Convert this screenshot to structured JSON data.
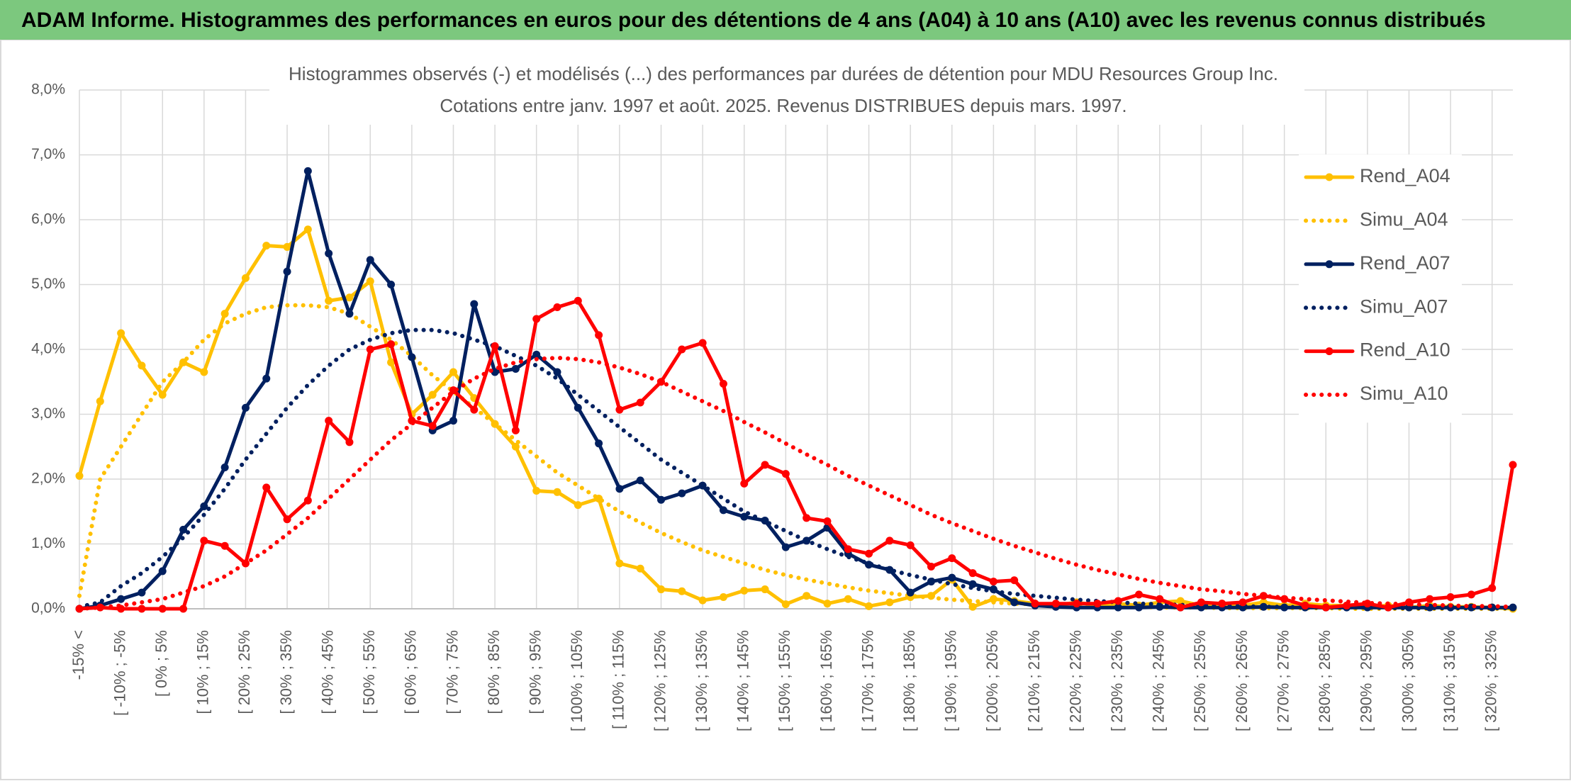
{
  "header": {
    "title": "ADAM Informe. Histogrammes des performances en euros pour des détentions de 4 ans (A04) à 10 ans (A10) avec les revenus connus distribués"
  },
  "chart_data": {
    "type": "line",
    "title": "Histogrammes observés (-) et modélisés (...) des performances par durées de détention pour MDU Resources Group Inc.",
    "subtitle": "Cotations entre janv. 1997 et août. 2025. Revenus DISTRIBUES depuis mars. 1997.",
    "categories": [
      "-15% <",
      null,
      "[ -10% ; -5%",
      null,
      "[ 0% ; 5%",
      null,
      "[ 10% ; 15%",
      null,
      "[ 20% ; 25%",
      null,
      "[ 30% ; 35%",
      null,
      "[ 40% ; 45%",
      null,
      "[ 50% ; 55%",
      null,
      "[ 60% ; 65%",
      null,
      "[ 70% ; 75%",
      null,
      "[ 80% ; 85%",
      null,
      "[ 90% ; 95%",
      null,
      "[ 100% ; 105%",
      null,
      "[ 110% ; 115%",
      null,
      "[ 120% ; 125%",
      null,
      "[ 130% ; 135%",
      null,
      "[ 140% ; 145%",
      null,
      "[ 150% ; 155%",
      null,
      "[ 160% ; 165%",
      null,
      "[ 170% ; 175%",
      null,
      "[ 180% ; 185%",
      null,
      "[ 190% ; 195%",
      null,
      "[ 200% ; 205%",
      null,
      "[ 210% ; 215%",
      null,
      "[ 220% ; 225%",
      null,
      "[ 230% ; 235%",
      null,
      "[ 240% ; 245%",
      null,
      "[ 250% ; 255%",
      null,
      "[ 260% ; 265%",
      null,
      "[ 270% ; 275%",
      null,
      "[ 280% ; 285%",
      null,
      "[ 290% ; 295%",
      null,
      "[ 300% ; 305%",
      null,
      "[ 310% ; 315%",
      null,
      "[ 320% ; 325%",
      null
    ],
    "series": [
      {
        "name": "Rend_A04",
        "color": "#ffc000",
        "line_style": "solid",
        "markers": true,
        "values": [
          2.05,
          3.2,
          4.25,
          3.75,
          3.3,
          3.8,
          3.65,
          4.55,
          5.1,
          5.6,
          5.58,
          5.85,
          4.75,
          4.8,
          5.05,
          3.8,
          3.0,
          3.3,
          3.65,
          3.25,
          2.85,
          2.5,
          1.82,
          1.8,
          1.6,
          1.7,
          0.7,
          0.62,
          0.3,
          0.27,
          0.13,
          0.18,
          0.28,
          0.3,
          0.07,
          0.2,
          0.08,
          0.15,
          0.04,
          0.1,
          0.18,
          0.2,
          0.45,
          0.03,
          0.15,
          0.12,
          0.08,
          0.05,
          0.1,
          0.05,
          0.08,
          0.05,
          0.1,
          0.12,
          0.05,
          0.08,
          0.05,
          0.1,
          0.05,
          0.08,
          0.05,
          0.05,
          0.03,
          0.05,
          0.02,
          0.05,
          0.03,
          0.03,
          0.02,
          0
        ]
      },
      {
        "name": "Simu_A04",
        "color": "#ffc000",
        "line_style": "dotted",
        "markers": false,
        "values": [
          0.2,
          2.0,
          2.5,
          3.0,
          3.5,
          3.8,
          4.15,
          4.4,
          4.55,
          4.65,
          4.68,
          4.68,
          4.65,
          4.55,
          4.35,
          4.15,
          3.9,
          3.6,
          3.35,
          3.1,
          2.85,
          2.6,
          2.35,
          2.1,
          1.9,
          1.7,
          1.5,
          1.33,
          1.17,
          1.03,
          0.9,
          0.8,
          0.7,
          0.6,
          0.52,
          0.45,
          0.39,
          0.33,
          0.28,
          0.24,
          0.2,
          0.17,
          0.14,
          0.12,
          0.1,
          0.08,
          0.07,
          0.06,
          0.05,
          0.04,
          0.03,
          0.03,
          0.02,
          0.02,
          0.02,
          0.01,
          0.01,
          0.01,
          0.01,
          0.01,
          0.01,
          0,
          0,
          0,
          0,
          0,
          0,
          0,
          0,
          0
        ]
      },
      {
        "name": "Rend_A07",
        "color": "#002060",
        "line_style": "solid",
        "markers": true,
        "values": [
          0,
          0.05,
          0.15,
          0.25,
          0.58,
          1.22,
          1.58,
          2.18,
          3.1,
          3.55,
          5.2,
          6.75,
          5.48,
          4.55,
          5.38,
          5.0,
          3.88,
          2.75,
          2.9,
          4.7,
          3.65,
          3.7,
          3.92,
          3.65,
          3.1,
          2.55,
          1.85,
          1.98,
          1.68,
          1.78,
          1.9,
          1.52,
          1.42,
          1.36,
          0.95,
          1.05,
          1.25,
          0.85,
          0.68,
          0.6,
          0.25,
          0.42,
          0.48,
          0.38,
          0.3,
          0.1,
          0.05,
          0.03,
          0.02,
          0.02,
          0.02,
          0.02,
          0.03,
          0.02,
          0.02,
          0.02,
          0.02,
          0.03,
          0.02,
          0.02,
          0.02,
          0.02,
          0.02,
          0.02,
          0.02,
          0.02,
          0.02,
          0.02,
          0.02,
          0.02
        ]
      },
      {
        "name": "Simu_A07",
        "color": "#002060",
        "line_style": "dotted",
        "markers": false,
        "values": [
          0.03,
          0.1,
          0.35,
          0.55,
          0.8,
          1.1,
          1.45,
          1.85,
          2.3,
          2.7,
          3.1,
          3.45,
          3.75,
          4.0,
          4.15,
          4.25,
          4.3,
          4.3,
          4.25,
          4.15,
          4.05,
          3.9,
          3.75,
          3.55,
          3.3,
          3.05,
          2.8,
          2.55,
          2.3,
          2.1,
          1.9,
          1.7,
          1.5,
          1.35,
          1.2,
          1.05,
          0.92,
          0.8,
          0.7,
          0.6,
          0.52,
          0.45,
          0.38,
          0.32,
          0.27,
          0.23,
          0.2,
          0.17,
          0.14,
          0.12,
          0.1,
          0.08,
          0.07,
          0.06,
          0.05,
          0.04,
          0.04,
          0.03,
          0.03,
          0.02,
          0.02,
          0.02,
          0.02,
          0.01,
          0.01,
          0.01,
          0.01,
          0.01,
          0.01,
          0.01
        ]
      },
      {
        "name": "Rend_A10",
        "color": "#ff0000",
        "line_style": "solid",
        "markers": true,
        "values": [
          0,
          0.02,
          0,
          0,
          0,
          0,
          1.05,
          0.97,
          0.7,
          1.87,
          1.38,
          1.67,
          2.9,
          2.57,
          4.0,
          4.08,
          2.9,
          2.82,
          3.37,
          3.07,
          4.05,
          2.75,
          4.47,
          4.65,
          4.75,
          4.22,
          3.07,
          3.18,
          3.5,
          4.0,
          4.1,
          3.47,
          1.93,
          2.22,
          2.08,
          1.4,
          1.35,
          0.92,
          0.85,
          1.05,
          0.98,
          0.65,
          0.78,
          0.55,
          0.42,
          0.44,
          0.08,
          0.08,
          0.08,
          0.08,
          0.12,
          0.22,
          0.15,
          0.02,
          0.1,
          0.08,
          0.1,
          0.2,
          0.15,
          0.05,
          0.02,
          0.05,
          0.08,
          0.02,
          0.1,
          0.15,
          0.18,
          0.22,
          0.32,
          2.22
        ]
      },
      {
        "name": "Simu_A10",
        "color": "#ff0000",
        "line_style": "dotted",
        "markers": false,
        "values": [
          0,
          0.02,
          0.05,
          0.1,
          0.15,
          0.25,
          0.35,
          0.5,
          0.7,
          0.9,
          1.15,
          1.4,
          1.7,
          2.0,
          2.3,
          2.6,
          2.85,
          3.1,
          3.35,
          3.55,
          3.7,
          3.8,
          3.85,
          3.87,
          3.85,
          3.8,
          3.72,
          3.62,
          3.5,
          3.35,
          3.2,
          3.05,
          2.88,
          2.72,
          2.55,
          2.38,
          2.22,
          2.05,
          1.9,
          1.75,
          1.6,
          1.45,
          1.32,
          1.2,
          1.08,
          0.97,
          0.87,
          0.77,
          0.68,
          0.6,
          0.53,
          0.46,
          0.4,
          0.35,
          0.3,
          0.27,
          0.23,
          0.2,
          0.17,
          0.15,
          0.13,
          0.11,
          0.09,
          0.08,
          0.07,
          0.06,
          0.05,
          0.04,
          0.04,
          0.03
        ]
      }
    ],
    "ylim": [
      0,
      8
    ],
    "yticks": [
      {
        "value": 0,
        "label": "0,0%"
      },
      {
        "value": 1,
        "label": "1,0%"
      },
      {
        "value": 2,
        "label": "2,0%"
      },
      {
        "value": 3,
        "label": "3,0%"
      },
      {
        "value": 4,
        "label": "4,0%"
      },
      {
        "value": 5,
        "label": "5,0%"
      },
      {
        "value": 6,
        "label": "6,0%"
      },
      {
        "value": 7,
        "label": "7,0%"
      },
      {
        "value": 8,
        "label": "8,0%"
      }
    ],
    "grid": true,
    "legend": "right"
  }
}
